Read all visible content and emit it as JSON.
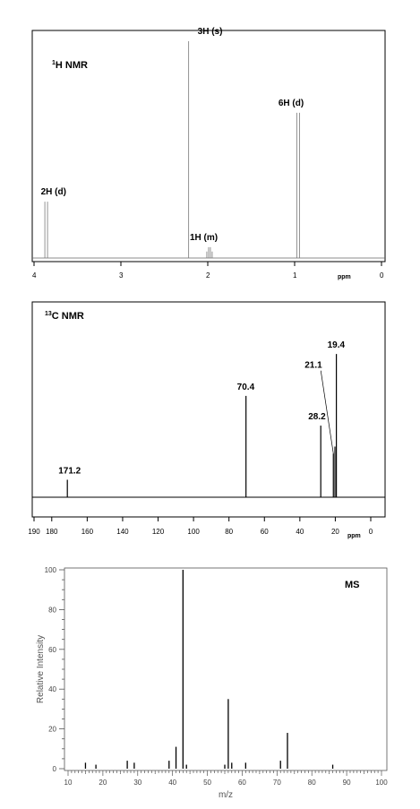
{
  "chart_data": [
    {
      "type": "line",
      "title": "1H NMR",
      "title_parts": {
        "sup": "1",
        "main": "H NMR"
      },
      "xlabel": "ppm",
      "x_reversed": true,
      "xlim": [
        4,
        0
      ],
      "ticks": [
        "4",
        "3",
        "2",
        "1",
        "0"
      ],
      "tick_values": [
        4,
        3,
        2,
        1,
        0
      ],
      "peaks": [
        {
          "ppm": 3.86,
          "height": 0.26,
          "label": "2H (d)",
          "mult": "d"
        },
        {
          "ppm": 2.22,
          "height": 1.0,
          "label": "3H (s)",
          "mult": "s"
        },
        {
          "ppm": 1.98,
          "height": 0.05,
          "label": "1H (m)",
          "mult": "m"
        },
        {
          "ppm": 0.96,
          "height": 0.67,
          "label": "6H (d)",
          "mult": "d"
        }
      ]
    },
    {
      "type": "bar",
      "title": "13C NMR",
      "title_parts": {
        "sup": "13",
        "main": "C NMR"
      },
      "xlabel": "ppm",
      "x_reversed": true,
      "xlim": [
        190,
        0
      ],
      "ticks": [
        "190",
        "180",
        "160",
        "140",
        "120",
        "100",
        "80",
        "60",
        "40",
        "20",
        "0"
      ],
      "tick_values": [
        190,
        180,
        160,
        140,
        120,
        100,
        80,
        60,
        40,
        20,
        0
      ],
      "peaks": [
        {
          "ppm": 171.2,
          "height": 0.1,
          "label": "171.2"
        },
        {
          "ppm": 70.4,
          "height": 0.58,
          "label": "70.4"
        },
        {
          "ppm": 28.2,
          "height": 0.41,
          "label": "28.2"
        },
        {
          "ppm": 21.1,
          "height": 0.25,
          "label": "21.1"
        },
        {
          "ppm": 20.2,
          "height": 0.29,
          "label": ""
        },
        {
          "ppm": 19.4,
          "height": 0.82,
          "label": "19.4"
        }
      ]
    },
    {
      "type": "bar",
      "title": "MS",
      "xlabel": "m/z",
      "ylabel": "Relative Intensity",
      "xlim": [
        10,
        100
      ],
      "ylim": [
        0,
        100
      ],
      "xticks": [
        "10",
        "20",
        "30",
        "40",
        "50",
        "60",
        "70",
        "80",
        "90",
        "100"
      ],
      "xtick_values": [
        10,
        20,
        30,
        40,
        50,
        60,
        70,
        80,
        90,
        100
      ],
      "yticks": [
        "0",
        "20",
        "40",
        "60",
        "80",
        "100"
      ],
      "ytick_values": [
        0,
        20,
        40,
        60,
        80,
        100
      ],
      "peaks": [
        {
          "mz": 15,
          "intensity": 3
        },
        {
          "mz": 18,
          "intensity": 2
        },
        {
          "mz": 27,
          "intensity": 4
        },
        {
          "mz": 29,
          "intensity": 3
        },
        {
          "mz": 39,
          "intensity": 4
        },
        {
          "mz": 41,
          "intensity": 11
        },
        {
          "mz": 43,
          "intensity": 100
        },
        {
          "mz": 44,
          "intensity": 2
        },
        {
          "mz": 55,
          "intensity": 2
        },
        {
          "mz": 56,
          "intensity": 35
        },
        {
          "mz": 57,
          "intensity": 3
        },
        {
          "mz": 61,
          "intensity": 3
        },
        {
          "mz": 71,
          "intensity": 4
        },
        {
          "mz": 73,
          "intensity": 18
        },
        {
          "mz": 86,
          "intensity": 2
        }
      ]
    }
  ]
}
